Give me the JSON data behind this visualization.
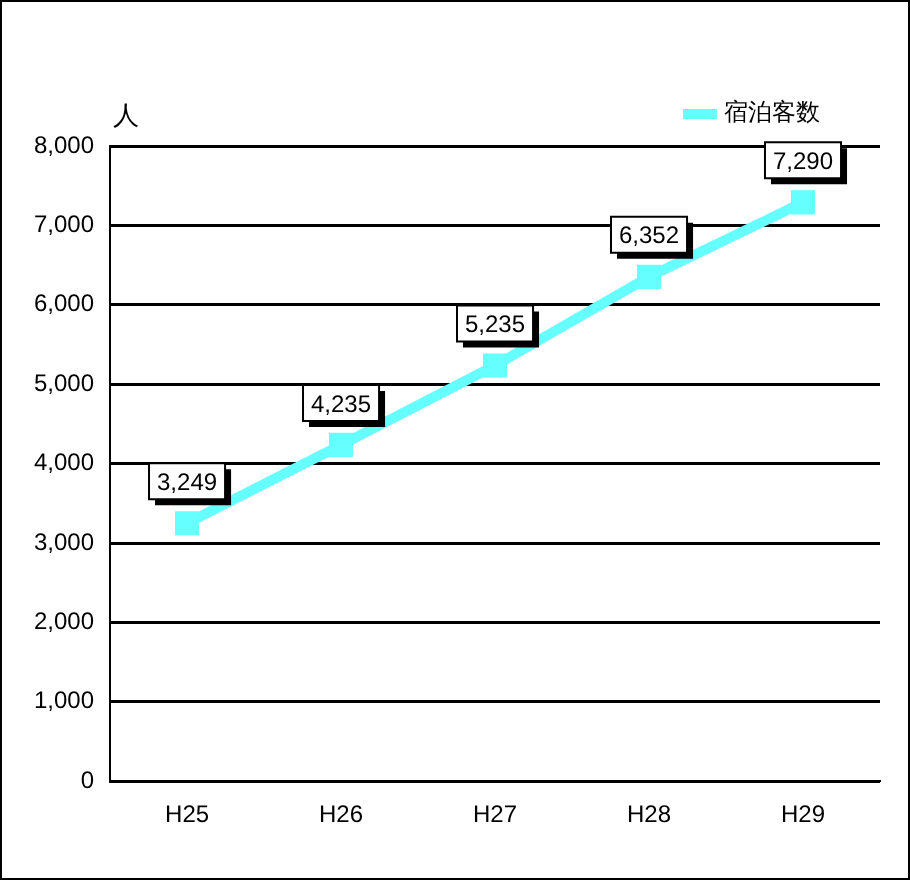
{
  "chart_data": {
    "type": "line",
    "ylabel": "人",
    "categories": [
      "H25",
      "H26",
      "H27",
      "H28",
      "H29"
    ],
    "series": [
      {
        "name": "宿泊客数",
        "color": "#66ffff",
        "values": [
          3249,
          4235,
          5235,
          6352,
          7290
        ],
        "value_labels": [
          "3,249",
          "4,235",
          "5,235",
          "6,352",
          "7,290"
        ]
      }
    ],
    "ylim": [
      0,
      8000
    ],
    "yticks": [
      0,
      {
        "value": 1000,
        "label": "1,000"
      },
      {
        "value": 2000,
        "label": "2,000"
      },
      {
        "value": 3000,
        "label": "3,000"
      },
      {
        "value": 4000,
        "label": "4,000"
      },
      {
        "value": 5000,
        "label": "5,000"
      },
      {
        "value": 6000,
        "label": "6,000"
      },
      {
        "value": 7000,
        "label": "7,000"
      },
      {
        "value": 8000,
        "label": "8,000"
      }
    ],
    "grid": "y",
    "legend": "top right",
    "marker": "square",
    "line_style": "solid"
  }
}
